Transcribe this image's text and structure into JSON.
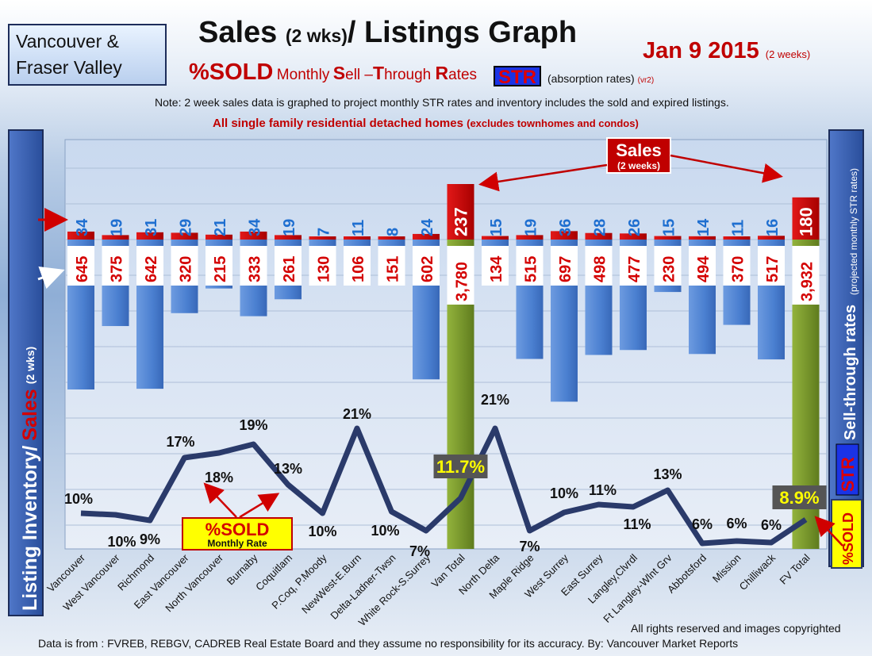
{
  "header": {
    "region_line1": "Vancouver &",
    "region_line2": "Fraser Valley",
    "title_main": "Sales",
    "title_paren": "(2 wks)",
    "title_rest": "/ Listings Graph",
    "date_main": "Jan 9 2015",
    "date_paren": "(2 weeks)",
    "sold_label": "%SOLD",
    "monthly_label": "Monthly",
    "sell_through_S": "S",
    "sell_through_ell": "ell ",
    "sell_through_dash": "–",
    "sell_through_T": "T",
    "sell_through_hrough": "hrough ",
    "sell_through_R": "R",
    "sell_through_ates": "ates",
    "str_badge": "STR",
    "absorption": "(absorption rates)",
    "version": "(vr2)",
    "note": "Note: 2 week sales data is graphed to project monthly STR rates and inventory includes the sold and expired listings.",
    "scope_main": "All single family residential detached homes",
    "scope_paren": "(excludes townhomes and condos)"
  },
  "sidebar": {
    "left_inventory": "Listing Inventory/",
    "left_sales": "Sales",
    "left_wks": "(2 wks)",
    "right_sell": "Sell-through rates",
    "right_paren": "(projected monthly STR rates)",
    "right_str": "STR"
  },
  "badges": {
    "sold_callout_line1": "%SOLD",
    "sold_callout_line2": "Monthly Rate",
    "sales_callout_line1": "Sales",
    "sales_callout_line2": "(2 weeks)",
    "pct_sold_side": "%SOLD"
  },
  "footer": {
    "rights": "All rights reserved and  images copyrighted",
    "source": "Data is from : FVREB, REBGV, CADREB Real Estate Board and they assume no responsibility for its accuracy.  By: Vancouver Market Reports"
  },
  "colors": {
    "sales_bar": "#d40000",
    "listing_bar": "#4a7fd0",
    "total_bar": "#7a9a2e",
    "sales_label": "#1f6fd0",
    "inventory_label": "#d40000",
    "line_high": "#ff1010",
    "line_low": "#2a3a6a"
  },
  "chart_data": {
    "type": "bar",
    "categories": [
      "Vancouver",
      "West Vancouver",
      "Richmond",
      "East Vancouver",
      "North Vancouver",
      "Burnaby",
      "Coquitlam",
      "P.Coq, P.Moody",
      "NewWest-E.Burn",
      "Delta-Ladner-Twsn",
      "White Rock-S.Surrey",
      "Van Total",
      "North Delta",
      "Maple Ridge",
      "West Surrey",
      "East Surrey",
      "Langley,Clvrdl",
      "Ft Langley-Wlnt Grv",
      "Abbotsford",
      "Mission",
      "Chilliwack",
      "FV Total"
    ],
    "series": [
      {
        "name": "Sales",
        "values": [
          34,
          19,
          31,
          29,
          21,
          34,
          19,
          7,
          11,
          8,
          24,
          237,
          15,
          19,
          36,
          28,
          26,
          15,
          14,
          11,
          16,
          180
        ]
      },
      {
        "name": "Listing Inventory",
        "values": [
          645,
          375,
          642,
          320,
          215,
          333,
          261,
          130,
          106,
          151,
          602,
          3780,
          134,
          515,
          697,
          498,
          477,
          230,
          494,
          370,
          517,
          3932
        ]
      },
      {
        "name": "%SOLD",
        "values": [
          10,
          10,
          9,
          17,
          18,
          19,
          13,
          10,
          21,
          10,
          7,
          11.7,
          21,
          7,
          10,
          11,
          11,
          13,
          6,
          6,
          6,
          8.9
        ]
      }
    ],
    "sold_labels": [
      "10%",
      "10%",
      "9%",
      "17%",
      "18%",
      "19%",
      "13%",
      "10%",
      "21%",
      "10%",
      "7%",
      "11.7%",
      "21%",
      "7%",
      "10%",
      "11%",
      "11%",
      "13%",
      "6%",
      "6%",
      "6%",
      "8.9%"
    ],
    "inventory_labels": [
      "645",
      "375",
      "642",
      "320",
      "215",
      "333",
      "261",
      "130",
      "106",
      "151",
      "602",
      "3,780",
      "134",
      "515",
      "697",
      "498",
      "477",
      "230",
      "494",
      "370",
      "517",
      "3,932"
    ],
    "total_categories": [
      "Van Total",
      "FV Total"
    ]
  }
}
